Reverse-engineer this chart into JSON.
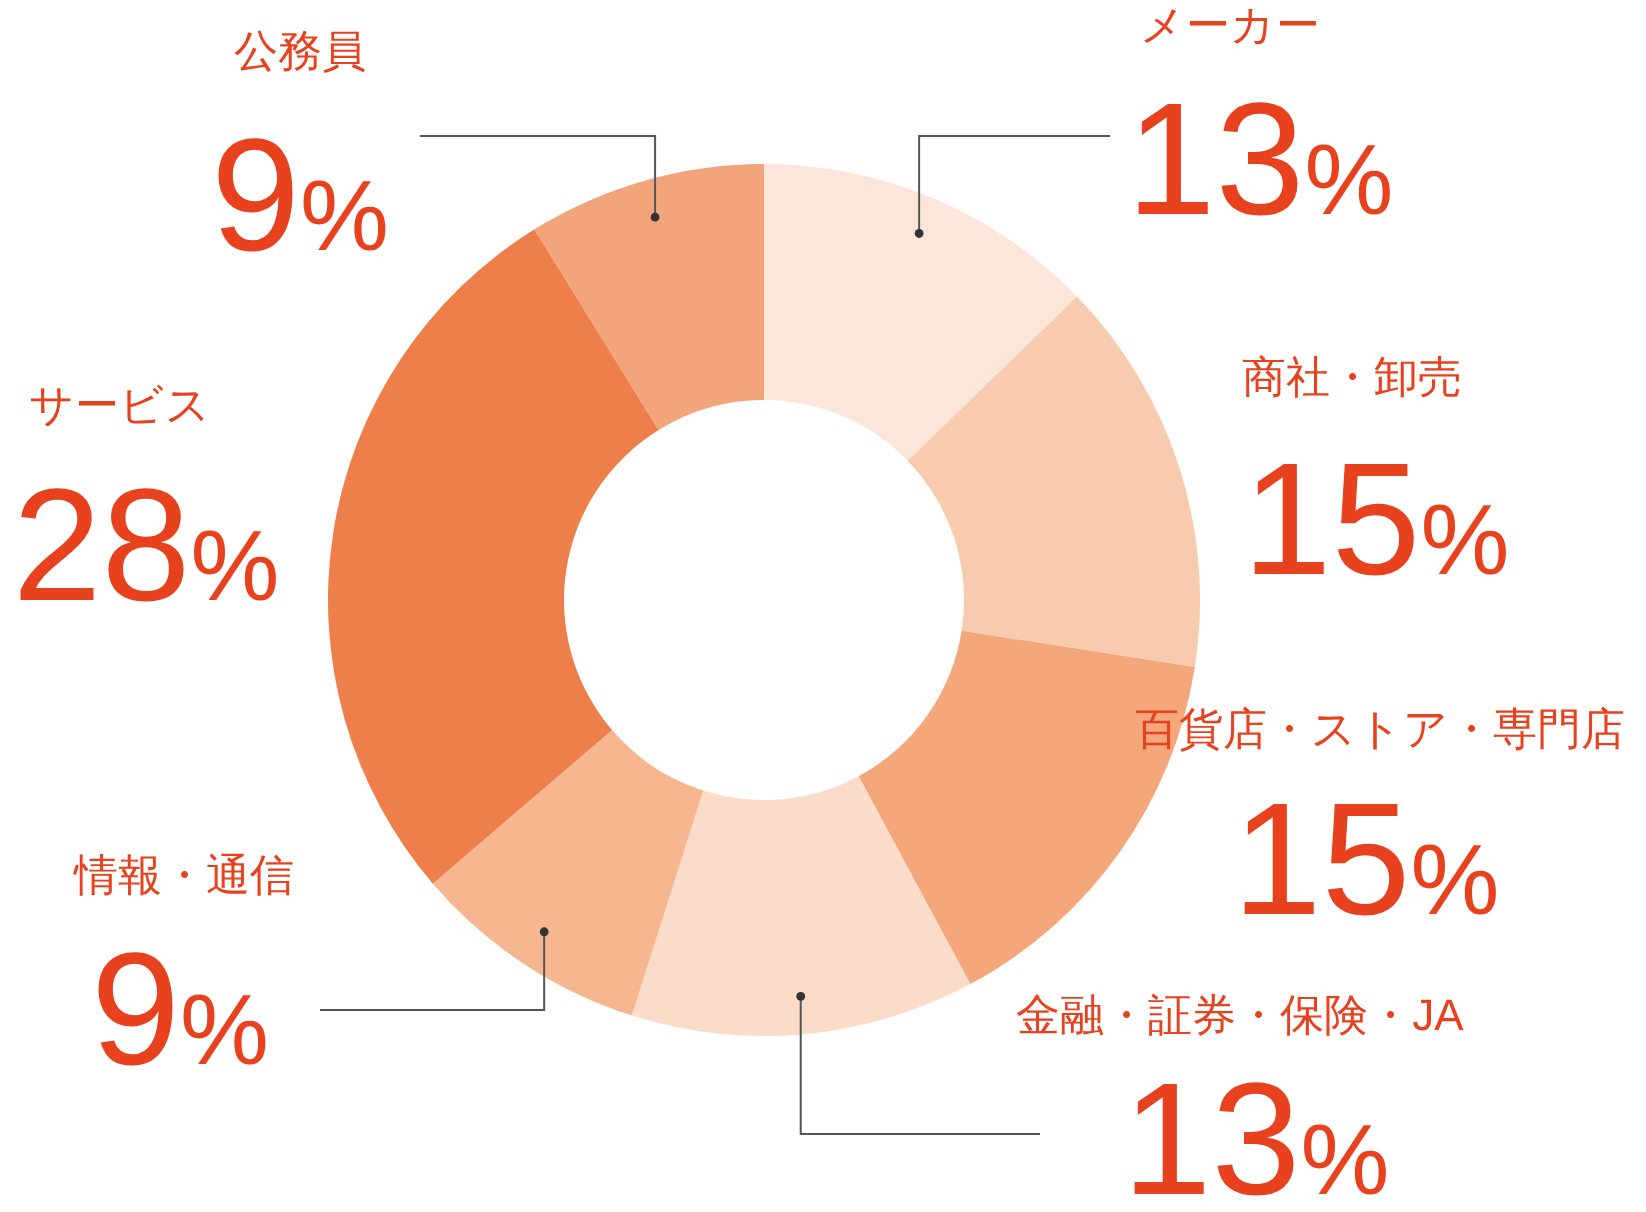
{
  "chart_data": {
    "type": "donut",
    "categories": [
      "メーカー",
      "商社・卸売",
      "百貨店・ストア・専門店",
      "金融・証券・保険・JA",
      "情報・通信",
      "サービス",
      "公務員"
    ],
    "values": [
      13,
      15,
      15,
      13,
      9,
      28,
      9
    ],
    "colors": [
      "#fce6d9",
      "#f8cbae",
      "#f4a77a",
      "#fadcc8",
      "#f6b690",
      "#ee7f4b",
      "#f2a57b"
    ],
    "value_labels": [
      "13%",
      "15%",
      "15%",
      "13%",
      "9%",
      "28%",
      "9%"
    ]
  }
}
